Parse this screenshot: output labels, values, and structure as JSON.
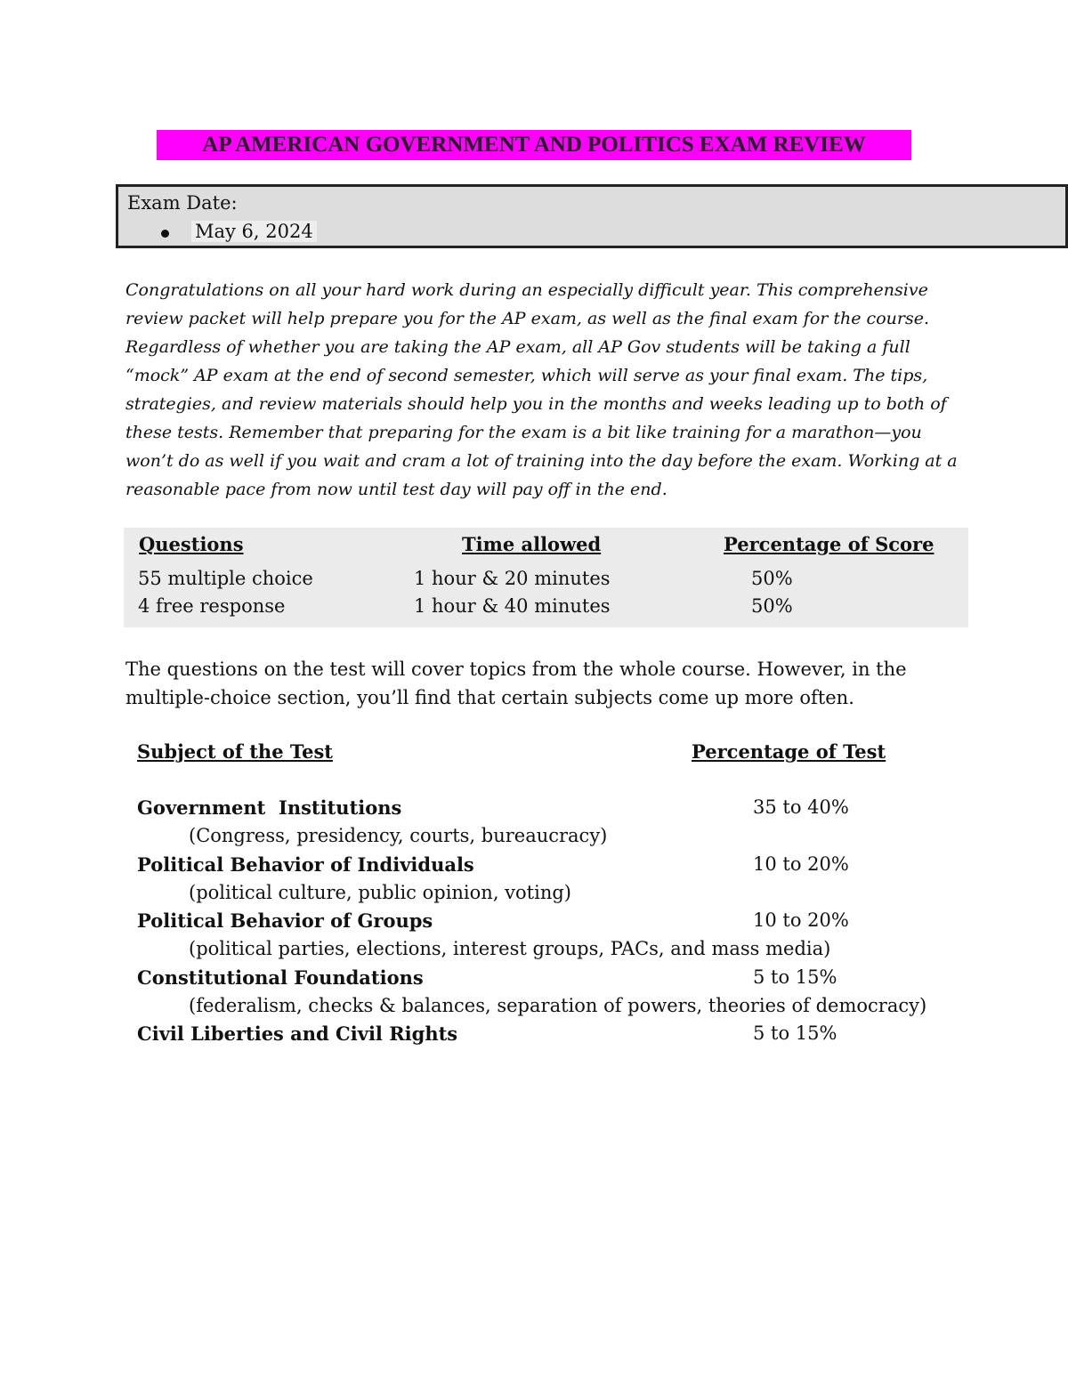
{
  "header": {
    "title": "AP AMERICAN GOVERNMENT AND POLITICS EXAM REVIEW"
  },
  "exam_box": {
    "label": "Exam Date:",
    "date": "May 6, 2024"
  },
  "intro": "Congratulations on all your hard work during an especially difficult year. This comprehensive review packet will help prepare you for the AP exam, as well as the final exam for the course. Regardless of whether you are taking the AP exam, all AP Gov students will be taking a full “mock” AP exam at the end of second semester, which will serve as your final exam. The tips, strategies, and review materials should help you in the months and weeks leading up to both of these tests. Remember that preparing for the exam is a bit like training for a marathon—you won’t do as well if you wait and cram a lot of training into the day before the exam. Working at a reasonable pace from now until test day will pay off in the end.",
  "table": {
    "headers": [
      "Questions",
      "Time allowed",
      "Percentage of Score"
    ],
    "rows": [
      [
        "55 multiple choice",
        "1 hour & 20 minutes",
        "50%"
      ],
      [
        "4 free response",
        "1 hour & 40 minutes",
        "50%"
      ]
    ]
  },
  "paragraph": "The questions on the test will cover topics from the whole course. However, in the multiple-choice section, you’ll find that certain subjects come up more often.",
  "subjects": {
    "headers": [
      "Subject of the Test",
      "Percentage of Test"
    ],
    "rows": [
      {
        "name": "Government  Institutions",
        "detail": "(Congress, presidency, courts, bureaucracy)",
        "pct": "35 to 40%"
      },
      {
        "name": "Political Behavior of Individuals",
        "detail": "(political culture, public opinion, voting)",
        "pct": "10 to 20%"
      },
      {
        "name": "Political Behavior of Groups",
        "detail": "(political parties, elections, interest groups, PACs, and mass media)",
        "pct": "10 to 20%"
      },
      {
        "name": "Constitutional Foundations",
        "detail": "(federalism, checks & balances, separation of powers, theories of democracy)",
        "pct": "5 to 15%"
      },
      {
        "name": "Civil Liberties and Civil Rights",
        "pct": "5 to 15%"
      }
    ]
  }
}
